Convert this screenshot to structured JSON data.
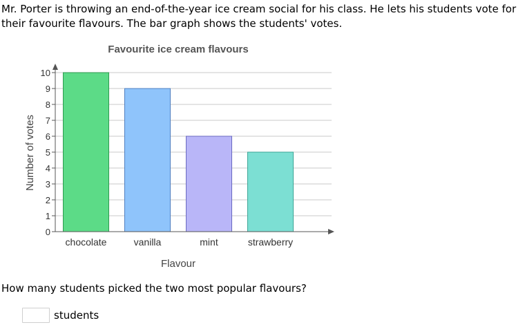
{
  "intro": "Mr. Porter is throwing an end-of-the-year ice cream social for his class. He lets his students vote for their favourite flavours. The bar graph shows the students' votes.",
  "question": "How many students picked the two most popular flavours?",
  "answer": {
    "value": "",
    "unit": "students"
  },
  "chart_data": {
    "type": "bar",
    "title": "Favourite ice cream flavours",
    "xlabel": "Flavour",
    "ylabel": "Number of votes",
    "categories": [
      "chocolate",
      "vanilla",
      "mint",
      "strawberry"
    ],
    "values": [
      10,
      9,
      6,
      5
    ],
    "colors": [
      "#5cdb87",
      "#8fc4fb",
      "#b9b6f8",
      "#7cdfd3"
    ],
    "edge_colors": [
      "#2f9a4f",
      "#4f7fc0",
      "#6a6ac0",
      "#3aa596"
    ],
    "ylim": [
      0,
      10
    ],
    "yticks": [
      0,
      1,
      2,
      3,
      4,
      5,
      6,
      7,
      8,
      9,
      10
    ],
    "grid": true
  }
}
